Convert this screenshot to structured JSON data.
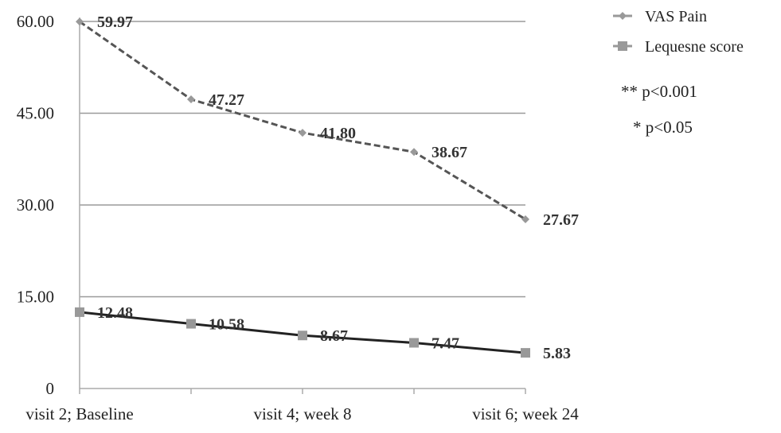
{
  "chart_data": {
    "type": "line",
    "x": [
      "visit 2; Baseline",
      "",
      "visit 4; week 8",
      "",
      "visit 6; week 24"
    ],
    "x_tick_labels": [
      "visit 2; Baseline",
      "visit 4; week 8",
      "visit 6; week 24"
    ],
    "ylim": [
      0,
      60
    ],
    "y_ticks": [
      0,
      15,
      30,
      45,
      60
    ],
    "y_tick_labels": [
      "0",
      "15.00",
      "30.00",
      "45.00",
      "60.00"
    ],
    "grid": true,
    "legend_position": "top-right",
    "series": [
      {
        "name": "VAS Pain",
        "values": [
          59.97,
          47.27,
          41.8,
          38.67,
          27.67
        ],
        "labels": [
          "59.97",
          "47.27",
          "41.80",
          "38.67",
          "27.67"
        ],
        "color": "#555555",
        "line_style": "dashed",
        "marker": "diamond"
      },
      {
        "name": "Lequesne score",
        "values": [
          12.48,
          10.58,
          8.67,
          7.47,
          5.83
        ],
        "labels": [
          "12.48",
          "10.58",
          "8.67",
          "7.47",
          "5.83"
        ],
        "color": "#222222",
        "line_style": "solid",
        "marker": "square"
      }
    ],
    "annotations": [
      "** p<0.001",
      "* p<0.05"
    ]
  }
}
